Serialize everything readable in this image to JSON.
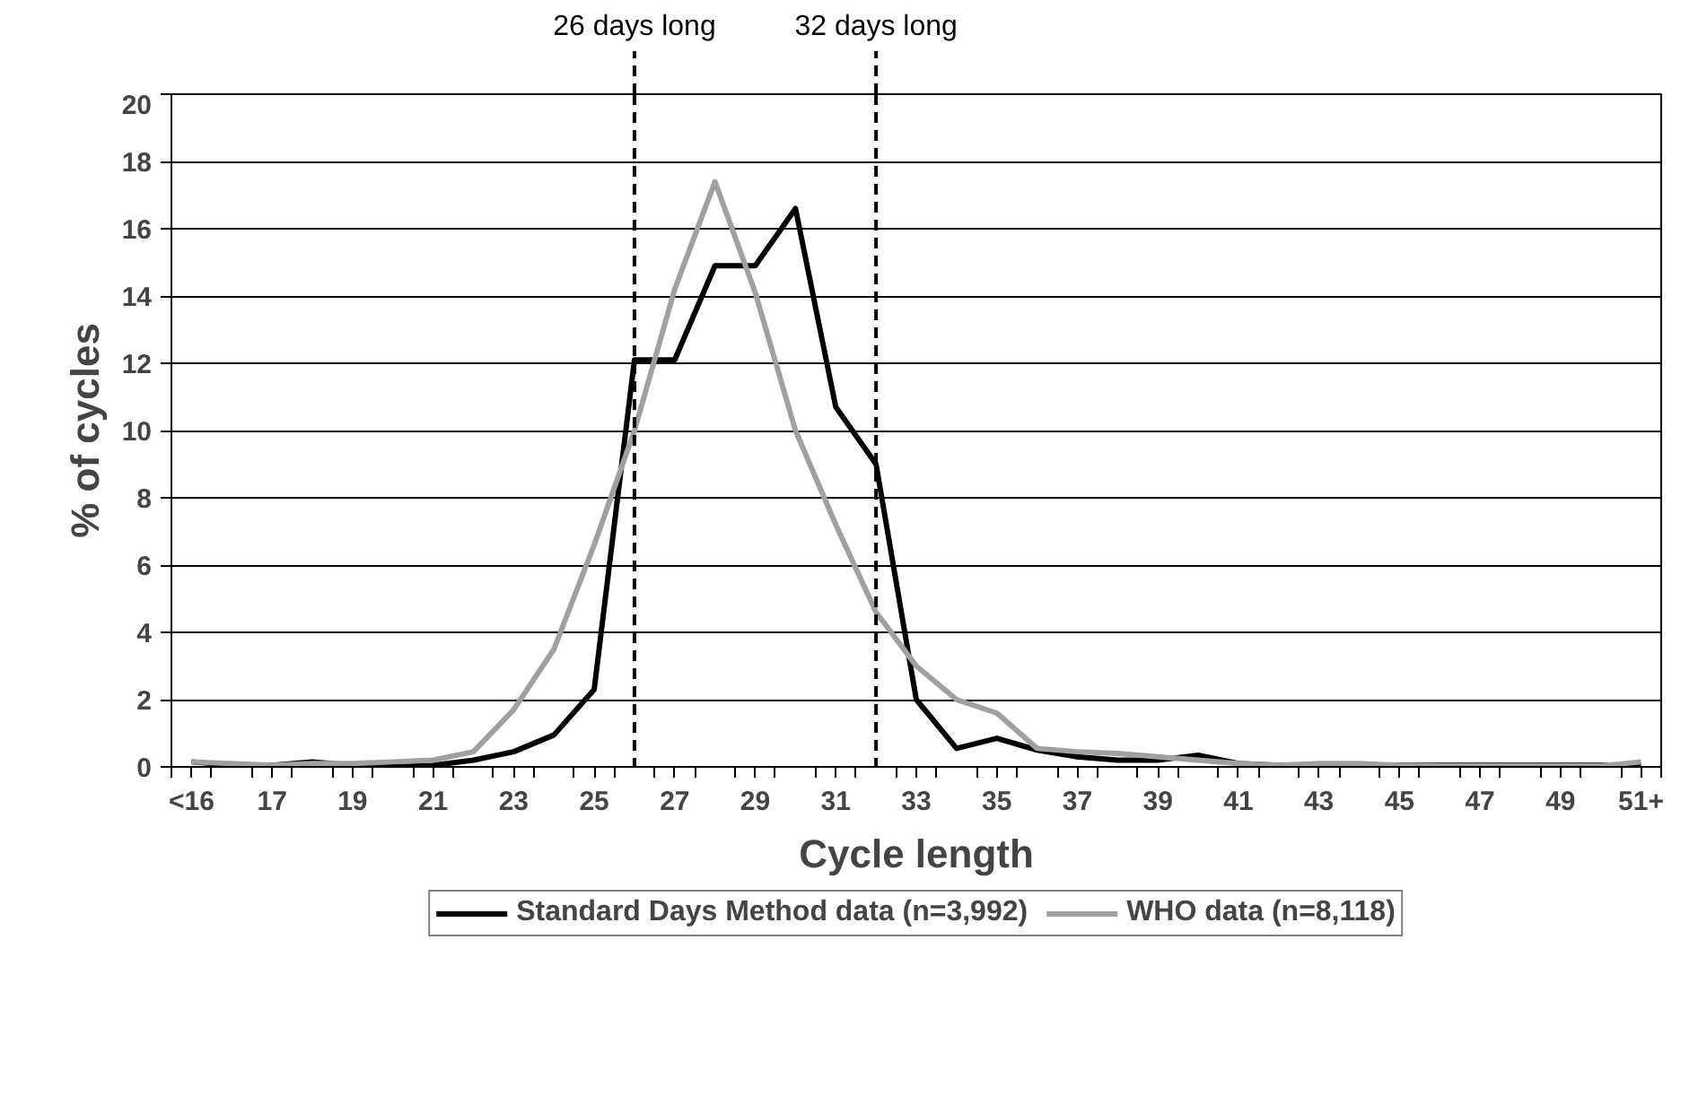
{
  "chart_data": {
    "type": "line",
    "xlabel": "Cycle length",
    "ylabel": "% of cycles",
    "x": [
      15,
      16,
      17,
      18,
      19,
      20,
      21,
      22,
      23,
      24,
      25,
      26,
      27,
      28,
      29,
      30,
      31,
      32,
      33,
      34,
      35,
      36,
      37,
      38,
      39,
      40,
      41,
      42,
      43,
      44,
      45,
      46,
      47,
      48,
      49,
      50,
      51
    ],
    "series": [
      {
        "name": "Standard Days Method data (n=3,992)",
        "color": "#000000",
        "values": [
          0.15,
          0.05,
          0.05,
          0.15,
          0.05,
          0.0,
          0.05,
          0.2,
          0.45,
          0.95,
          2.3,
          12.1,
          12.1,
          14.9,
          14.9,
          16.6,
          10.7,
          9.0,
          2.0,
          0.55,
          0.85,
          0.5,
          0.3,
          0.2,
          0.2,
          0.35,
          0.1,
          0.05,
          0.05,
          0.05,
          0.05,
          0.05,
          0.05,
          0.05,
          0.05,
          0.05,
          0.05
        ]
      },
      {
        "name": "WHO data (n=8,118)",
        "color": "#a0a0a0",
        "values": [
          0.15,
          0.1,
          0.05,
          0.1,
          0.1,
          0.15,
          0.2,
          0.45,
          1.7,
          3.5,
          6.6,
          10.0,
          14.2,
          17.4,
          14.1,
          10.0,
          7.2,
          4.6,
          3.0,
          2.0,
          1.6,
          0.55,
          0.45,
          0.4,
          0.3,
          0.2,
          0.1,
          0.05,
          0.1,
          0.1,
          0.05,
          0.03,
          0.03,
          0.03,
          0.03,
          0.03,
          0.15
        ]
      }
    ],
    "xlim": [
      14.5,
      51.5
    ],
    "xticks": [
      {
        "value": 15,
        "label": "<16"
      },
      17,
      19,
      21,
      23,
      25,
      27,
      29,
      31,
      33,
      35,
      37,
      39,
      41,
      43,
      45,
      47,
      49,
      {
        "value": 51,
        "label": "51+"
      },
      {
        "value": 14.5,
        "label": null
      },
      {
        "value": 15.5,
        "label": null
      },
      {
        "value": 16.5,
        "label": null
      },
      {
        "value": 17.5,
        "label": null
      },
      {
        "value": 18.5,
        "label": null
      },
      {
        "value": 19.5,
        "label": null
      },
      {
        "value": 20.5,
        "label": null
      },
      {
        "value": 21.5,
        "label": null
      },
      {
        "value": 22.5,
        "label": null
      },
      {
        "value": 23.5,
        "label": null
      },
      {
        "value": 24.5,
        "label": null
      },
      {
        "value": 25.5,
        "label": null
      },
      {
        "value": 26.5,
        "label": null
      },
      {
        "value": 27.5,
        "label": null
      },
      {
        "value": 28.5,
        "label": null
      },
      {
        "value": 29.5,
        "label": null
      },
      {
        "value": 30.5,
        "label": null
      },
      {
        "value": 31.5,
        "label": null
      },
      {
        "value": 32.5,
        "label": null
      },
      {
        "value": 33.5,
        "label": null
      },
      {
        "value": 34.5,
        "label": null
      },
      {
        "value": 35.5,
        "label": null
      },
      {
        "value": 36.5,
        "label": null
      },
      {
        "value": 37.5,
        "label": null
      },
      {
        "value": 38.5,
        "label": null
      },
      {
        "value": 39.5,
        "label": null
      },
      {
        "value": 40.5,
        "label": null
      },
      {
        "value": 41.5,
        "label": null
      },
      {
        "value": 42.5,
        "label": null
      },
      {
        "value": 43.5,
        "label": null
      },
      {
        "value": 44.5,
        "label": null
      },
      {
        "value": 45.5,
        "label": null
      },
      {
        "value": 46.5,
        "label": null
      },
      {
        "value": 47.5,
        "label": null
      },
      {
        "value": 48.5,
        "label": null
      },
      {
        "value": 49.5,
        "label": null
      },
      {
        "value": 50.5,
        "label": null
      },
      {
        "value": 51.5,
        "label": null
      }
    ],
    "ylim": [
      0,
      20
    ],
    "yticks": [
      0,
      2,
      4,
      6,
      8,
      10,
      12,
      14,
      16,
      18,
      20
    ],
    "grid": "y",
    "legend": "bottom",
    "marker": "none",
    "line_style": "solid",
    "ref_lines": [
      {
        "axis": "x",
        "value": 26,
        "label": "26 days long",
        "color": "#000000",
        "line_style": "dashed"
      },
      {
        "axis": "x",
        "value": 32,
        "label": "32 days long",
        "color": "#000000",
        "line_style": "dashed"
      }
    ]
  }
}
